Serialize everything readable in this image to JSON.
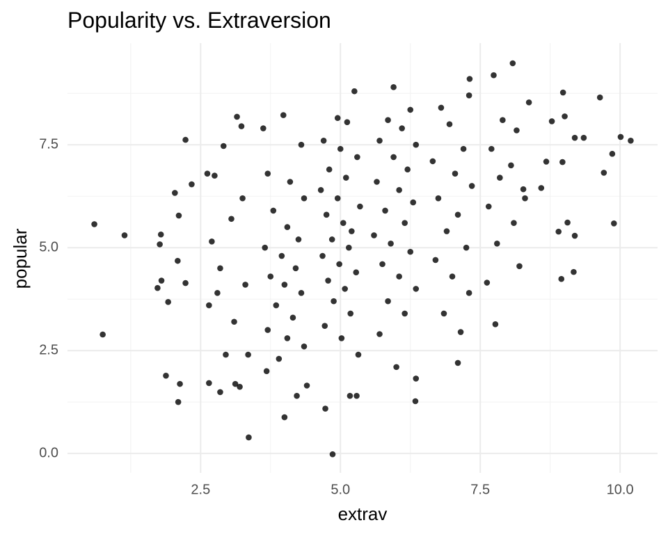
{
  "chart_data": {
    "type": "scatter",
    "title": "Popularity vs. Extraversion",
    "x_label": "extrav",
    "y_label": "popular",
    "xlim": [
      0.12,
      10.67
    ],
    "ylim": [
      -0.47,
      9.97
    ],
    "xticks": [
      2.5,
      {
        "value": 5,
        "label": "5.0"
      },
      7.5,
      {
        "value": 10,
        "label": "10.0"
      }
    ],
    "yticks": [
      {
        "value": 0,
        "label": "0.0"
      },
      2.5,
      {
        "value": 5,
        "label": "5.0"
      },
      7.5
    ],
    "grid": true,
    "series": [
      {
        "color": "#000000",
        "x": [
          0.6,
          0.75,
          1.14,
          1.88,
          2.1,
          2.23,
          2.34,
          2.04,
          2.11,
          1.79,
          1.77,
          2.09,
          1.8,
          1.73,
          2.23,
          1.92,
          8.08,
          7.74,
          7.31,
          5.95,
          3.36,
          4.86,
          4.0,
          4.73,
          10.19,
          10.01,
          9.64,
          8.98,
          9.86,
          9.71,
          9.89,
          9.17,
          8.95,
          9.06,
          8.9,
          9.19,
          9.01,
          8.78,
          8.37,
          9.35,
          9.19,
          8.97,
          8.68,
          8.27,
          8.59,
          7.77,
          7.62,
          7.1,
          6.34,
          6.35,
          5.17,
          5.29,
          2.13,
          2.65,
          2.85,
          3.12,
          3.2,
          2.62,
          2.75,
          3.15,
          3.23,
          2.91,
          2.7,
          3.05,
          2.85,
          3.3,
          2.65,
          3.1,
          2.95,
          3.25,
          2.8,
          3.35,
          3.62,
          3.98,
          4.3,
          3.7,
          4.1,
          4.35,
          3.8,
          4.05,
          4.25,
          3.65,
          3.95,
          4.2,
          3.75,
          4.0,
          4.3,
          3.85,
          4.15,
          3.7,
          4.05,
          4.35,
          3.9,
          3.68,
          4.22,
          4.4,
          4.95,
          5.25,
          5.12,
          4.7,
          5.0,
          5.3,
          4.8,
          5.1,
          4.65,
          4.95,
          5.35,
          4.75,
          5.05,
          5.2,
          4.85,
          5.15,
          4.68,
          4.98,
          5.28,
          4.78,
          5.08,
          4.88,
          5.18,
          4.72,
          5.02,
          5.32,
          6.25,
          5.85,
          6.1,
          5.7,
          6.35,
          5.95,
          6.2,
          5.65,
          6.05,
          6.3,
          5.8,
          6.15,
          5.6,
          5.9,
          6.25,
          5.75,
          6.05,
          6.35,
          5.85,
          6.15,
          5.7,
          6.0,
          6.8,
          7.3,
          6.95,
          7.2,
          6.65,
          7.05,
          7.35,
          6.75,
          7.1,
          6.9,
          7.25,
          6.7,
          7.0,
          7.3,
          6.85,
          7.15,
          7.9,
          8.15,
          7.7,
          8.05,
          7.85,
          8.3,
          7.65,
          8.1,
          7.8,
          8.2
        ],
        "values": [
          5.57,
          2.89,
          5.3,
          1.89,
          1.25,
          7.62,
          6.54,
          6.33,
          5.78,
          5.32,
          5.08,
          4.68,
          4.2,
          4.02,
          4.14,
          3.68,
          9.48,
          9.19,
          9.1,
          8.9,
          0.39,
          -0.02,
          0.88,
          1.09,
          7.6,
          7.69,
          8.65,
          8.77,
          7.28,
          6.82,
          5.59,
          4.41,
          4.24,
          5.61,
          5.39,
          5.29,
          8.19,
          8.07,
          8.53,
          7.67,
          7.67,
          7.08,
          7.09,
          6.42,
          6.45,
          3.14,
          4.15,
          2.2,
          1.27,
          1.82,
          1.4,
          1.4,
          1.69,
          1.71,
          1.49,
          1.69,
          1.62,
          6.8,
          6.75,
          8.18,
          7.95,
          7.47,
          5.15,
          5.7,
          4.5,
          4.1,
          3.6,
          3.2,
          2.4,
          6.2,
          3.9,
          2.4,
          7.9,
          8.22,
          7.5,
          6.8,
          6.6,
          6.2,
          5.9,
          5.5,
          5.2,
          5.0,
          4.8,
          4.5,
          4.3,
          4.1,
          3.9,
          3.6,
          3.3,
          3.0,
          2.8,
          2.6,
          2.3,
          2.0,
          1.4,
          1.65,
          8.15,
          8.8,
          8.05,
          7.6,
          7.4,
          7.2,
          6.9,
          6.7,
          6.4,
          6.2,
          6.0,
          5.8,
          5.6,
          5.4,
          5.2,
          5.0,
          4.8,
          4.6,
          4.4,
          4.2,
          4.0,
          3.7,
          3.4,
          3.1,
          2.8,
          2.4,
          8.35,
          8.1,
          7.9,
          7.6,
          7.5,
          7.2,
          6.9,
          6.6,
          6.4,
          6.1,
          5.9,
          5.6,
          5.3,
          5.1,
          4.9,
          4.6,
          4.3,
          4.0,
          3.7,
          3.4,
          2.9,
          2.1,
          8.4,
          8.7,
          8.0,
          7.4,
          7.1,
          6.8,
          6.5,
          6.2,
          5.8,
          5.4,
          5.0,
          4.7,
          4.3,
          3.9,
          3.4,
          2.95,
          8.1,
          7.85,
          7.4,
          7.0,
          6.7,
          6.2,
          6.0,
          5.6,
          5.1,
          4.55
        ]
      }
    ]
  }
}
